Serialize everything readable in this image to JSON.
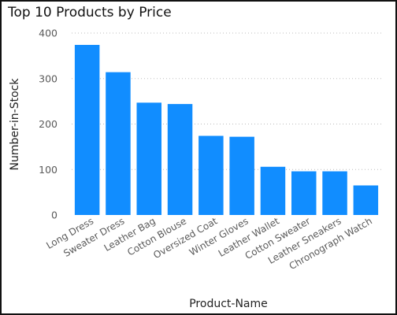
{
  "colors": {
    "bar": "#118DFF",
    "grid": "#bdbdbd",
    "text": "#5a5a5a"
  },
  "chart_data": {
    "type": "bar",
    "title": "Top 10 Products by Price",
    "xlabel": "Product-Name",
    "ylabel": "Number-in-Stock",
    "ylim": [
      0,
      400
    ],
    "yticks": [
      0,
      100,
      200,
      300,
      400
    ],
    "grid": true,
    "categories": [
      "Long Dress",
      "Sweater Dress",
      "Leather Bag",
      "Cotton Blouse",
      "Oversized Coat",
      "Winter Gloves",
      "Leather Wallet",
      "Cotton Sweater",
      "Leather Sneakers",
      "Chronograph Watch"
    ],
    "values": [
      374,
      314,
      247,
      244,
      174,
      172,
      106,
      96,
      96,
      65
    ]
  }
}
